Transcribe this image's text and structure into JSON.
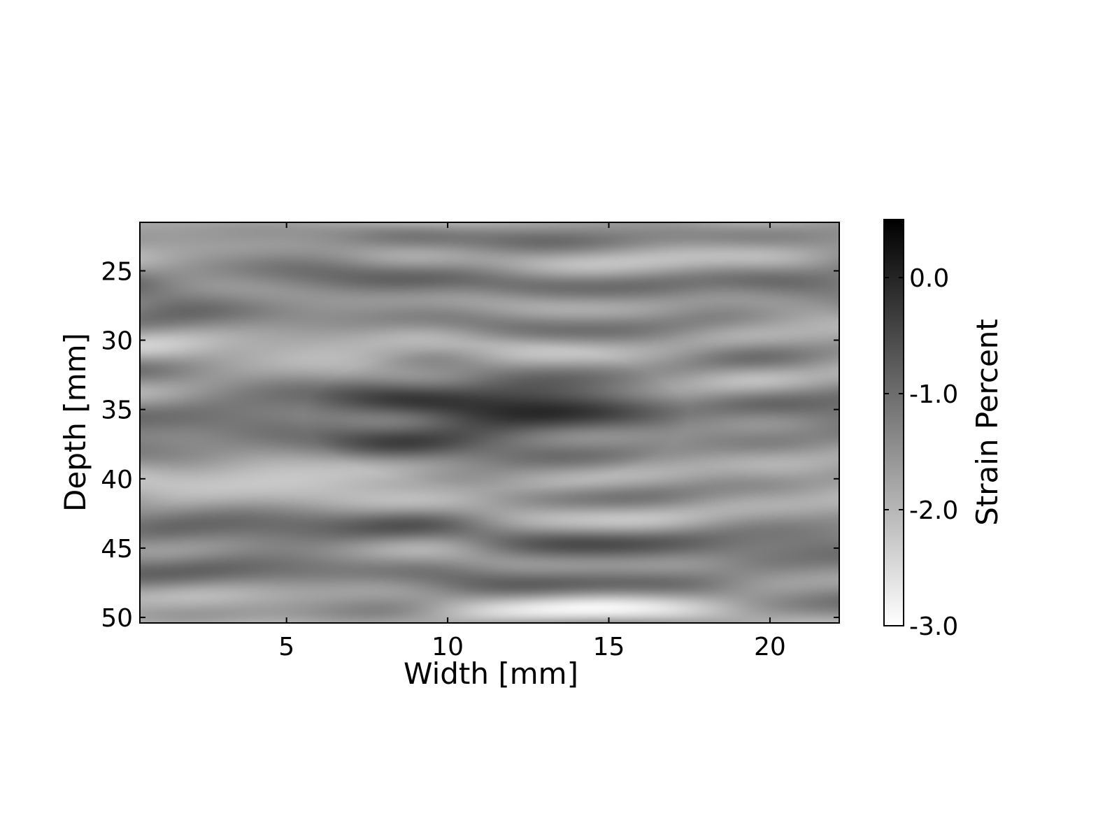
{
  "chart_data": {
    "type": "heatmap",
    "title": "",
    "xlabel": "Width [mm]",
    "ylabel": "Depth [mm]",
    "xlim": [
      0.45,
      22.15
    ],
    "ylim": [
      50.4,
      21.5
    ],
    "y_inverted": true,
    "x_ticks": [
      "5",
      "10",
      "15",
      "20"
    ],
    "x_tick_values": [
      5,
      10,
      15,
      20
    ],
    "y_ticks": [
      "25",
      "30",
      "35",
      "40",
      "45",
      "50"
    ],
    "y_tick_values": [
      25,
      30,
      35,
      40,
      45,
      50
    ],
    "colormap": "gray_r",
    "colorbar": {
      "label": "Strain Percent",
      "range": [
        -3.0,
        0.5
      ],
      "ticks": [
        "0.0",
        "-1.0",
        "-2.0",
        "-3.0"
      ],
      "tick_values": [
        0.0,
        -1.0,
        -2.0,
        -3.0
      ]
    },
    "grid": false,
    "legend": "none",
    "features": [
      {
        "description": "lens-shaped region of high strain (darker) centered near",
        "x_center": 11.5,
        "y_center": 35.5,
        "x_halfwidth": 6.0,
        "y_halfwidth": 5.2,
        "value": 0.0
      }
    ],
    "background_value_range": [
      -2.6,
      -0.4
    ]
  }
}
